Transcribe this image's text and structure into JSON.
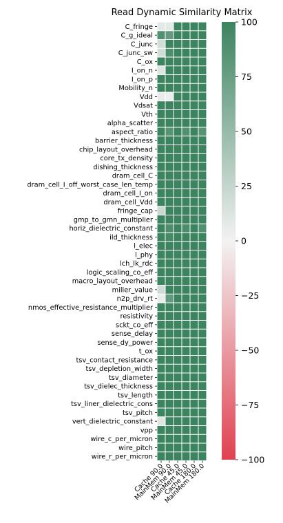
{
  "chart_data": {
    "type": "heatmap",
    "title": "Read Dynamic Similarity Matrix",
    "xlabel": "",
    "ylabel": "",
    "x_categories": [
      "Cache 90.0",
      "MainMem 90.0",
      "Cache 45.0",
      "MainMem 45.0",
      "Cache 180.0",
      "MainMem 180.0"
    ],
    "y_categories": [
      "C_fringe",
      "C_g_ideal",
      "C_junc",
      "C_junc_sw",
      "C_ox",
      "I_on_n",
      "I_on_p",
      "Mobility_n",
      "Vdd",
      "Vdsat",
      "Vth",
      "alpha_scatter",
      "aspect_ratio",
      "barrier_thickness",
      "chip_layout_overhead",
      "core_tx_density",
      "dishing_thickness",
      "dram_cell_C",
      "dram_cell_I_off_worst_case_len_temp",
      "dram_cell_I_on",
      "dram_cell_Vdd",
      "fringe_cap",
      "gmp_to_gmn_multiplier",
      "horiz_dielectric_constant",
      "ild_thickness",
      "l_elec",
      "l_phy",
      "lch_lk_rdc",
      "logic_scaling_co_eff",
      "macro_layout_overhead",
      "miller_value",
      "n2p_drv_rt",
      "nmos_effective_resistance_multiplier",
      "resistivity",
      "sckt_co_eff",
      "sense_delay",
      "sense_dy_power",
      "t_ox",
      "tsv_contact_resistance",
      "tsv_depletion_width",
      "tsv_diameter",
      "tsv_dielec_thickness",
      "tsv_length",
      "tsv_liner_dielectric_cons",
      "tsv_pitch",
      "vert_dielectric_constant",
      "vpp",
      "wire_c_per_micron",
      "wire_pitch",
      "wire_r_per_micron"
    ],
    "values": [
      [
        8,
        8,
        100,
        100,
        100,
        100
      ],
      [
        88,
        78,
        100,
        100,
        100,
        100
      ],
      [
        18,
        100,
        100,
        100,
        100,
        100
      ],
      [
        18,
        90,
        100,
        100,
        100,
        100
      ],
      [
        100,
        100,
        100,
        100,
        100,
        100
      ],
      [
        12,
        100,
        100,
        100,
        100,
        100
      ],
      [
        100,
        100,
        100,
        100,
        100,
        100
      ],
      [
        100,
        100,
        100,
        100,
        100,
        100
      ],
      [
        5,
        3,
        100,
        100,
        100,
        100
      ],
      [
        100,
        100,
        100,
        100,
        100,
        100
      ],
      [
        100,
        100,
        100,
        100,
        100,
        100
      ],
      [
        100,
        100,
        100,
        100,
        100,
        100
      ],
      [
        100,
        85,
        100,
        88,
        100,
        85
      ],
      [
        100,
        100,
        100,
        100,
        100,
        100
      ],
      [
        100,
        100,
        100,
        100,
        100,
        100
      ],
      [
        100,
        100,
        100,
        100,
        100,
        100
      ],
      [
        100,
        100,
        100,
        100,
        100,
        100
      ],
      [
        100,
        100,
        100,
        100,
        100,
        100
      ],
      [
        100,
        100,
        100,
        100,
        100,
        100
      ],
      [
        100,
        100,
        100,
        100,
        100,
        100
      ],
      [
        100,
        100,
        100,
        100,
        100,
        100
      ],
      [
        22,
        100,
        100,
        100,
        100,
        100
      ],
      [
        100,
        100,
        100,
        100,
        100,
        100
      ],
      [
        100,
        90,
        100,
        92,
        100,
        88
      ],
      [
        100,
        95,
        100,
        100,
        100,
        100
      ],
      [
        100,
        100,
        100,
        100,
        100,
        100
      ],
      [
        100,
        100,
        100,
        100,
        100,
        100
      ],
      [
        100,
        100,
        100,
        100,
        100,
        100
      ],
      [
        100,
        100,
        100,
        100,
        100,
        100
      ],
      [
        100,
        100,
        100,
        100,
        100,
        100
      ],
      [
        20,
        100,
        100,
        100,
        100,
        100
      ],
      [
        5,
        80,
        100,
        100,
        100,
        100
      ],
      [
        100,
        100,
        100,
        100,
        100,
        100
      ],
      [
        100,
        100,
        100,
        100,
        100,
        100
      ],
      [
        100,
        100,
        100,
        100,
        100,
        100
      ],
      [
        100,
        100,
        100,
        100,
        100,
        100
      ],
      [
        100,
        100,
        100,
        100,
        100,
        100
      ],
      [
        100,
        100,
        100,
        100,
        100,
        100
      ],
      [
        100,
        100,
        100,
        100,
        100,
        100
      ],
      [
        100,
        100,
        100,
        100,
        100,
        100
      ],
      [
        100,
        100,
        100,
        100,
        100,
        100
      ],
      [
        100,
        100,
        100,
        100,
        100,
        100
      ],
      [
        100,
        100,
        100,
        100,
        100,
        100
      ],
      [
        100,
        100,
        100,
        100,
        100,
        100
      ],
      [
        100,
        100,
        100,
        100,
        100,
        100
      ],
      [
        10,
        100,
        100,
        100,
        100,
        100
      ],
      [
        100,
        100,
        100,
        100,
        100,
        100
      ],
      [
        100,
        100,
        100,
        100,
        100,
        100
      ],
      [
        100,
        100,
        100,
        100,
        100,
        100
      ],
      [
        100,
        100,
        100,
        100,
        100,
        100
      ]
    ],
    "colorbar": {
      "range": [
        -100,
        100
      ],
      "ticks": [
        "100",
        "75",
        "50",
        "25",
        "0",
        "−25",
        "−50",
        "−75",
        "−100"
      ],
      "tick_values": [
        100,
        75,
        50,
        25,
        0,
        -25,
        -50,
        -75,
        -100
      ],
      "colors": {
        "low": "#e04150",
        "mid": "#f2f2f2",
        "high": "#3c8360"
      }
    }
  }
}
